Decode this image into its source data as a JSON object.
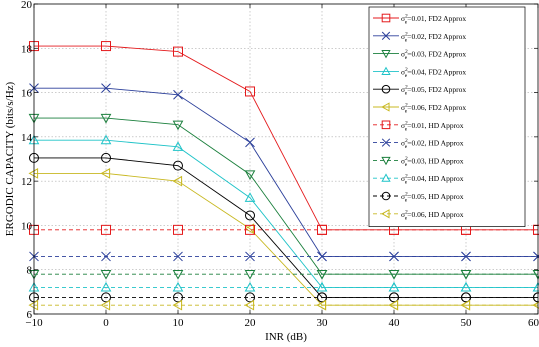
{
  "chart_data": {
    "type": "line",
    "title": "",
    "xlabel": "INR (dB)",
    "ylabel": "ERGODIC CAPACITY (bits/s/Hz)",
    "xlim": [
      -10,
      60
    ],
    "ylim": [
      6,
      20
    ],
    "xticks": [
      -10,
      0,
      10,
      20,
      30,
      40,
      50,
      60
    ],
    "yticks": [
      6,
      8,
      10,
      12,
      14,
      16,
      18,
      20
    ],
    "x": [
      -10,
      0,
      10,
      20,
      30,
      40,
      50,
      60
    ],
    "grid": true,
    "legend_position": "top-right",
    "series": [
      {
        "prefix": "σ",
        "sub": "e",
        "sup": "2",
        "label_rest": "=0.01, FD2 Approx",
        "marker": "square",
        "color": "#e41a1c",
        "dash": "solid",
        "values": [
          18.1,
          18.1,
          17.85,
          16.05,
          9.8,
          9.8,
          9.8,
          9.8
        ]
      },
      {
        "prefix": "σ",
        "sub": "e",
        "sup": "2",
        "label_rest": "=0.02, FD2 Approx",
        "marker": "x",
        "color": "#2b3f9a",
        "dash": "solid",
        "values": [
          16.2,
          16.2,
          15.9,
          13.75,
          8.6,
          8.6,
          8.6,
          8.6
        ]
      },
      {
        "prefix": "σ",
        "sub": "e",
        "sup": "2",
        "label_rest": "=0.03, FD2 Approx",
        "marker": "triangle-down",
        "color": "#1a7f3c",
        "dash": "solid",
        "values": [
          14.85,
          14.85,
          14.55,
          12.3,
          7.8,
          7.8,
          7.8,
          7.8
        ]
      },
      {
        "prefix": "σ",
        "sub": "e",
        "sup": "2",
        "label_rest": "=0.04, FD2 Approx",
        "marker": "triangle-up",
        "color": "#1fc3c8",
        "dash": "solid",
        "values": [
          13.85,
          13.85,
          13.55,
          11.25,
          7.2,
          7.2,
          7.2,
          7.2
        ]
      },
      {
        "prefix": "σ",
        "sub": "e",
        "sup": "2",
        "label_rest": "=0.05, FD2 Approx",
        "marker": "circle",
        "color": "#000000",
        "dash": "solid",
        "values": [
          13.05,
          13.05,
          12.7,
          10.45,
          6.75,
          6.75,
          6.75,
          6.75
        ]
      },
      {
        "prefix": "σ",
        "sub": "e",
        "sup": "2",
        "label_rest": "=0.06, FD2 Approx",
        "marker": "triangle-left",
        "color": "#c8b821",
        "dash": "solid",
        "values": [
          12.35,
          12.35,
          12.0,
          9.85,
          6.4,
          6.4,
          6.4,
          6.4
        ]
      },
      {
        "prefix": "σ",
        "sub": "e",
        "sup": "2",
        "label_rest": "=0.01, HD Approx",
        "marker": "square",
        "color": "#e41a1c",
        "dash": "dashed",
        "values": [
          9.8,
          9.8,
          9.8,
          9.8,
          9.8,
          9.8,
          9.8,
          9.8
        ]
      },
      {
        "prefix": "σ",
        "sub": "e",
        "sup": "2",
        "label_rest": "=0.02, HD Approx",
        "marker": "x",
        "color": "#2b3f9a",
        "dash": "dashed",
        "values": [
          8.6,
          8.6,
          8.6,
          8.6,
          8.6,
          8.6,
          8.6,
          8.6
        ]
      },
      {
        "prefix": "σ",
        "sub": "e",
        "sup": "2",
        "label_rest": "=0.03, HD Approx",
        "marker": "triangle-down",
        "color": "#1a7f3c",
        "dash": "dashed",
        "values": [
          7.8,
          7.8,
          7.8,
          7.8,
          7.8,
          7.8,
          7.8,
          7.8
        ]
      },
      {
        "prefix": "σ",
        "sub": "e",
        "sup": "2",
        "label_rest": "=0.04, HD Approx",
        "marker": "triangle-up",
        "color": "#1fc3c8",
        "dash": "dashed",
        "values": [
          7.2,
          7.2,
          7.2,
          7.2,
          7.2,
          7.2,
          7.2,
          7.2
        ]
      },
      {
        "prefix": "σ",
        "sub": "e",
        "sup": "2",
        "label_rest": "=0.05, HD Approx",
        "marker": "circle",
        "color": "#000000",
        "dash": "dashed",
        "values": [
          6.75,
          6.75,
          6.75,
          6.75,
          6.75,
          6.75,
          6.75,
          6.75
        ]
      },
      {
        "prefix": "σ",
        "sub": "e",
        "sup": "2",
        "label_rest": "=0.06, HD Approx",
        "marker": "triangle-left",
        "color": "#c8b821",
        "dash": "dashed",
        "values": [
          6.4,
          6.4,
          6.4,
          6.4,
          6.4,
          6.4,
          6.4,
          6.4
        ]
      }
    ]
  }
}
